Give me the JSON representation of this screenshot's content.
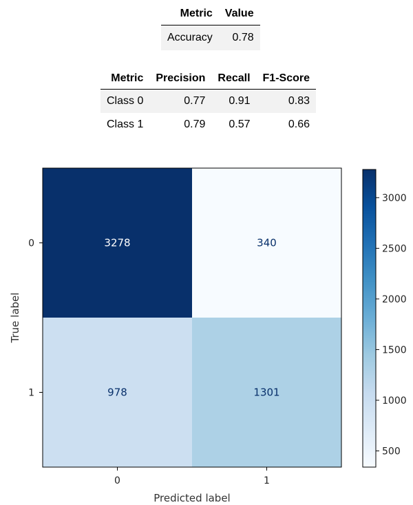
{
  "accuracy_table": {
    "headers": [
      "Metric",
      "Value"
    ],
    "rows": [
      [
        "Accuracy",
        "0.78"
      ]
    ]
  },
  "class_table": {
    "headers": [
      "Metric",
      "Precision",
      "Recall",
      "F1-Score"
    ],
    "rows": [
      [
        "Class 0",
        "0.77",
        "0.91",
        "0.83"
      ],
      [
        "Class 1",
        "0.79",
        "0.57",
        "0.66"
      ]
    ]
  },
  "chart_data": {
    "type": "heatmap",
    "title": "",
    "xlabel": "Predicted label",
    "ylabel": "True label",
    "x_categories": [
      "0",
      "1"
    ],
    "y_categories": [
      "0",
      "1"
    ],
    "values": [
      [
        3278,
        340
      ],
      [
        978,
        1301
      ]
    ],
    "colormap": "Blues",
    "colorbar": {
      "range": [
        340,
        3278
      ],
      "ticks": [
        500,
        1000,
        1500,
        2000,
        2500,
        3000
      ]
    },
    "colors": {
      "min": "#f7fbff",
      "max": "#08306b",
      "text_on_dark": "#ffffff",
      "text_on_light": "#08306b"
    }
  }
}
